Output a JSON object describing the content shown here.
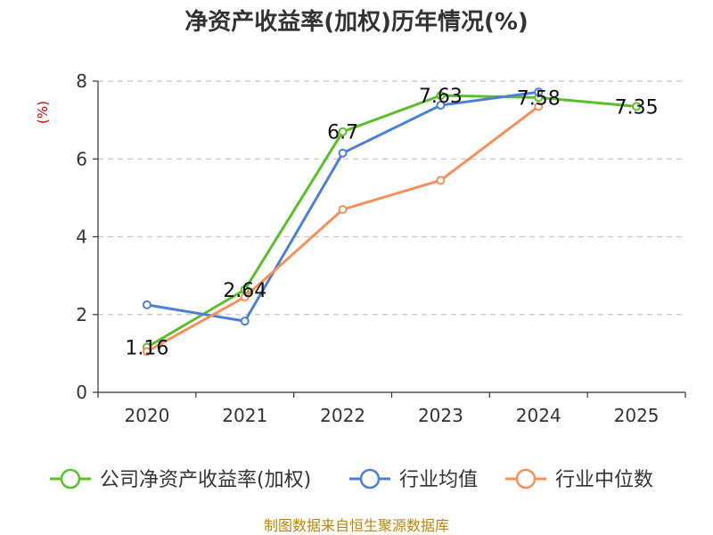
{
  "chart_data": {
    "type": "line",
    "title": "净资产收益率(加权)历年情况(%)",
    "ylabel": "(%)",
    "xlabel": "",
    "ylim": [
      0,
      8
    ],
    "yticks": [
      0,
      2,
      4,
      6,
      8
    ],
    "grid": true,
    "legend_position": "bottom",
    "categories": [
      "2020",
      "2021",
      "2022",
      "2023",
      "2024",
      "2025"
    ],
    "series": [
      {
        "name": "公司净资产收益率(加权)",
        "color": "#5cbf2a",
        "values": [
          1.16,
          2.64,
          6.7,
          7.63,
          7.58,
          7.35
        ],
        "labels": [
          "1.16",
          "2.64",
          "6.7",
          "7.63",
          "7.58",
          "7.35"
        ]
      },
      {
        "name": "行业均值",
        "color": "#4e7fd8",
        "values": [
          2.25,
          1.83,
          6.15,
          7.38,
          7.72,
          null
        ]
      },
      {
        "name": "行业中位数",
        "color": "#f5905a",
        "values": [
          1.05,
          2.45,
          4.7,
          5.45,
          7.35,
          null
        ]
      }
    ],
    "source": "制图数据来自恒生聚源数据库"
  }
}
